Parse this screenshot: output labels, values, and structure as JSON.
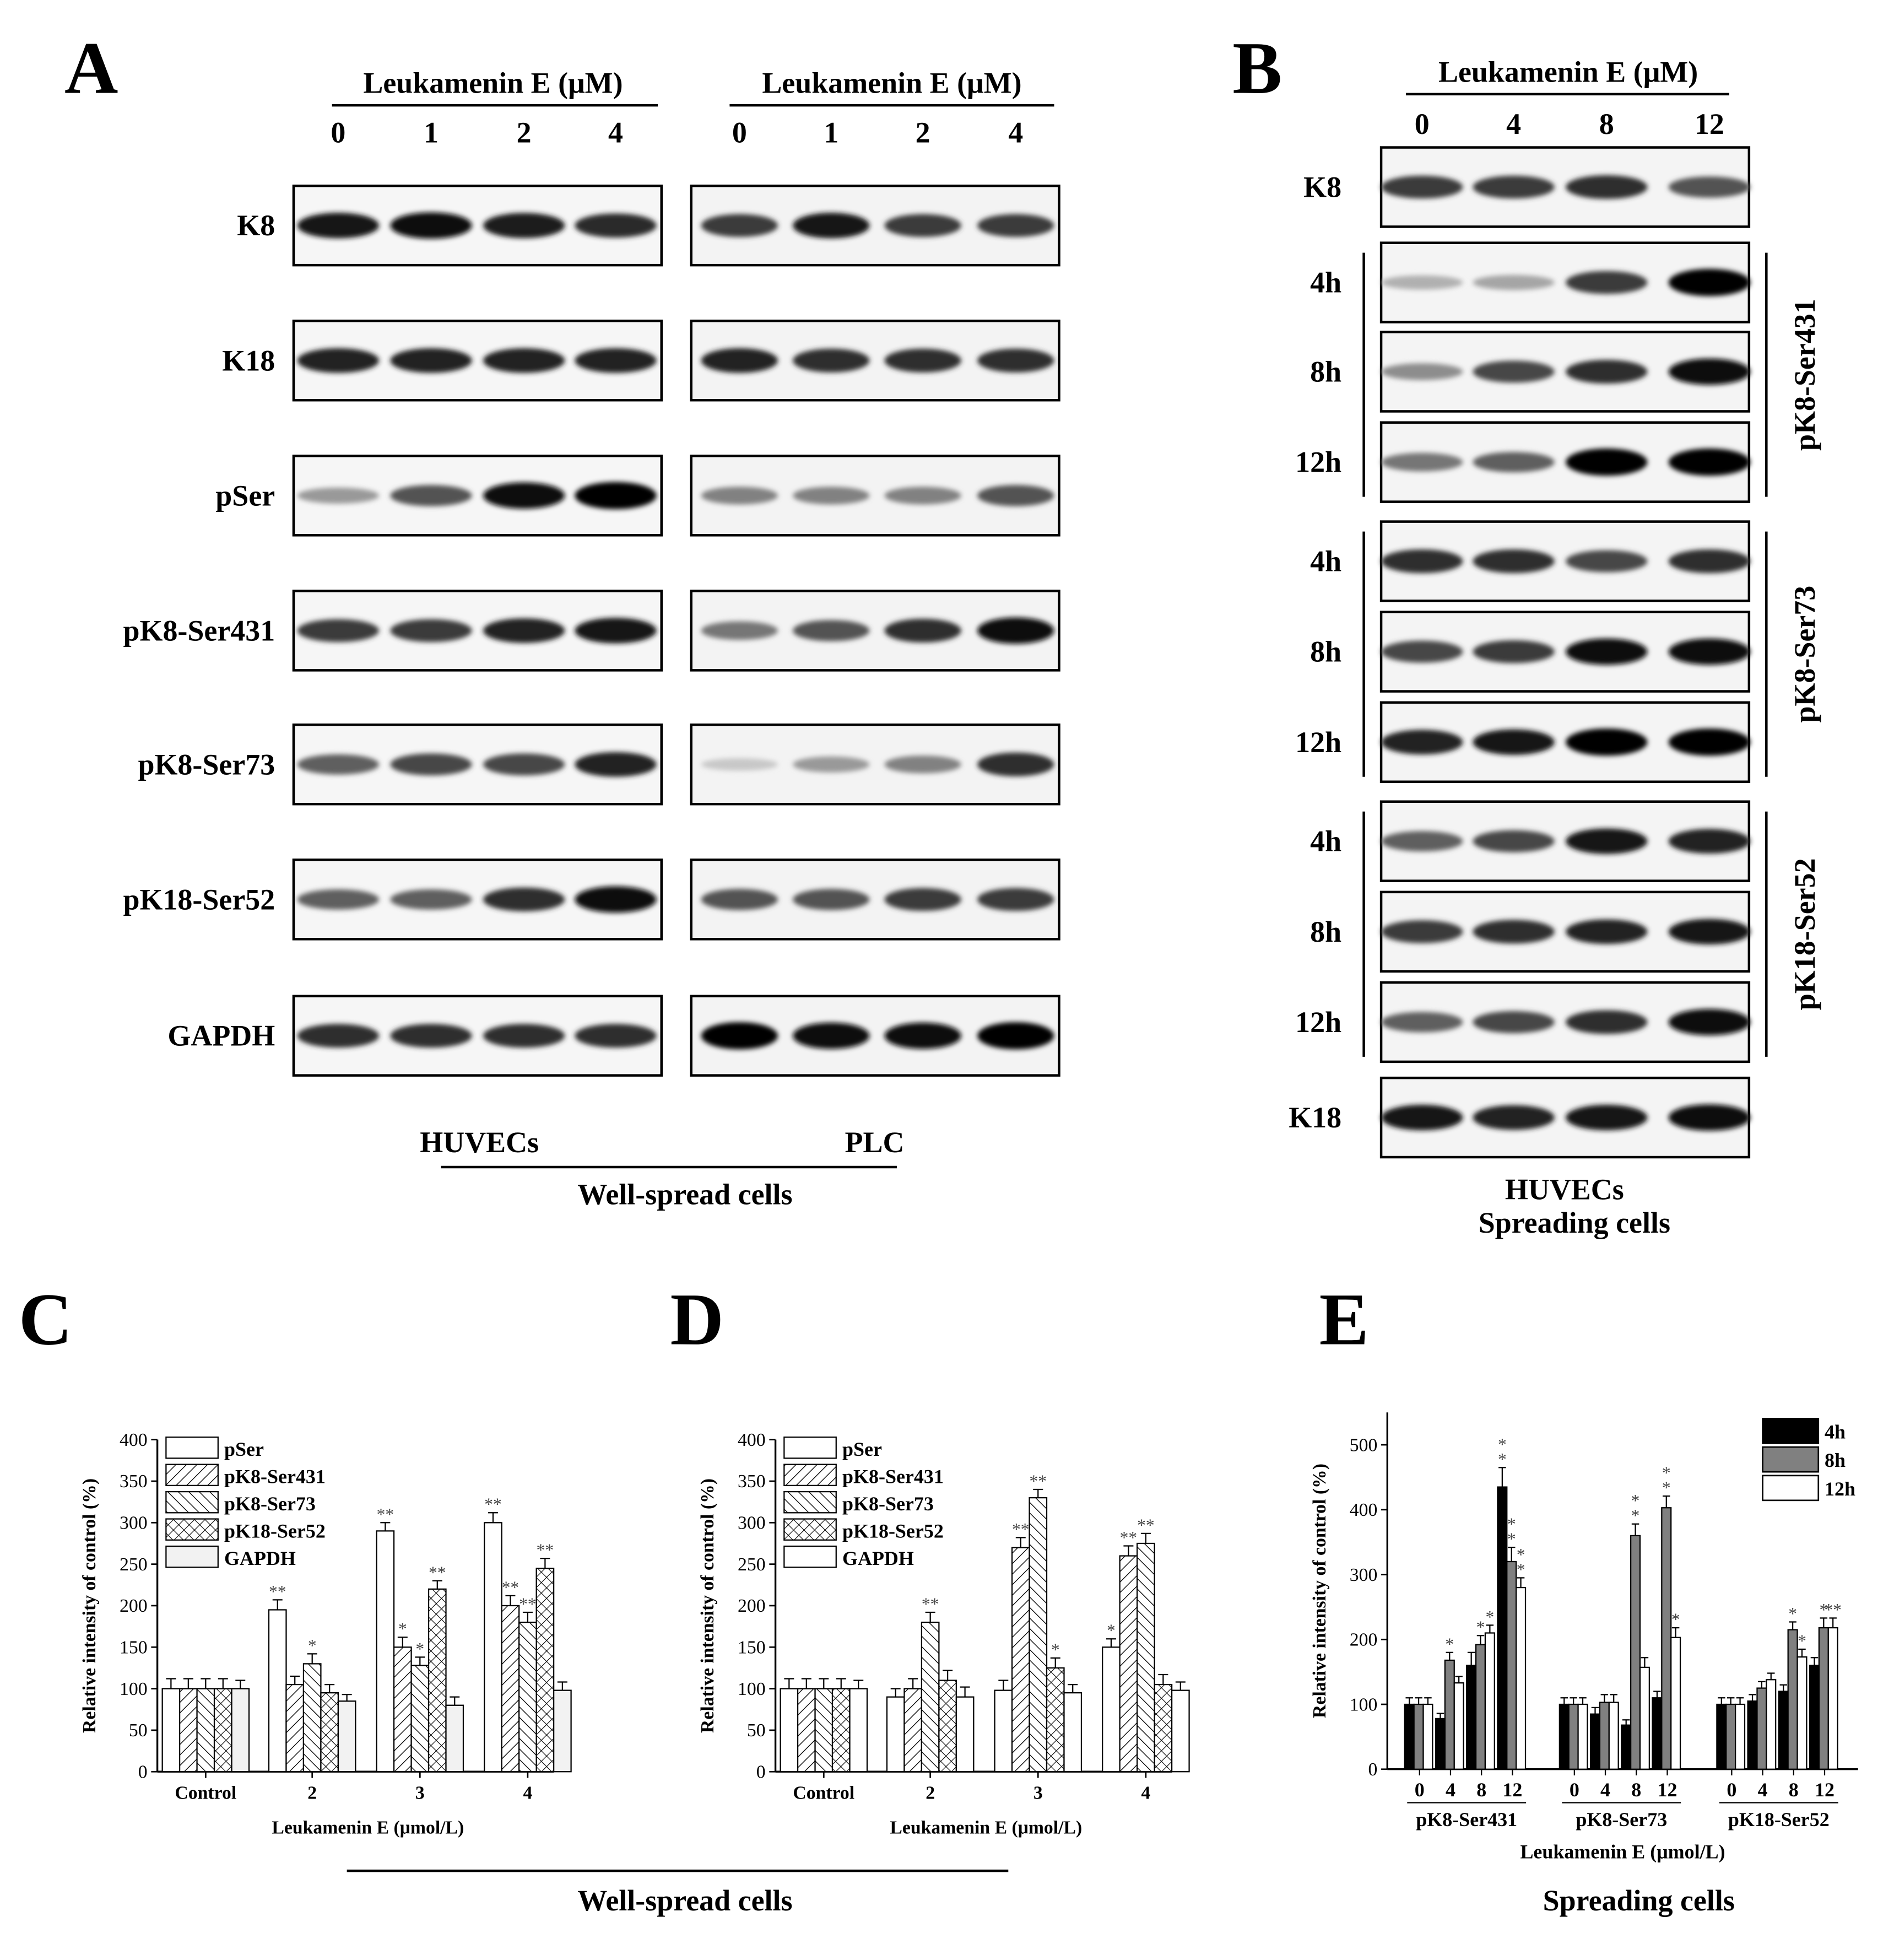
{
  "panelA": {
    "letter": "A",
    "title_left": "Leukamenin E (μM)",
    "title_right": "Leukamenin E (μM)",
    "doses": [
      "0",
      "1",
      "2",
      "4"
    ],
    "rows": [
      "K8",
      "K18",
      "pSer",
      "pK8-Ser431",
      "pK8-Ser73",
      "pK18-Ser52",
      "GAPDH"
    ],
    "cell_huvec": "HUVECs",
    "cell_plc": "PLC",
    "footer": "Well-spread cells",
    "bands_huvec": [
      [
        0.9,
        0.95,
        0.88,
        0.82
      ],
      [
        0.85,
        0.85,
        0.85,
        0.85
      ],
      [
        0.35,
        0.65,
        0.95,
        1.0
      ],
      [
        0.75,
        0.75,
        0.85,
        0.9
      ],
      [
        0.6,
        0.7,
        0.7,
        0.85
      ],
      [
        0.6,
        0.6,
        0.8,
        0.95
      ],
      [
        0.8,
        0.8,
        0.8,
        0.8
      ]
    ],
    "bands_plc": [
      [
        0.75,
        0.9,
        0.75,
        0.75
      ],
      [
        0.85,
        0.8,
        0.8,
        0.8
      ],
      [
        0.45,
        0.45,
        0.45,
        0.65
      ],
      [
        0.5,
        0.65,
        0.8,
        0.95
      ],
      [
        0.15,
        0.35,
        0.45,
        0.8
      ],
      [
        0.65,
        0.65,
        0.75,
        0.75
      ],
      [
        1.0,
        0.95,
        0.95,
        1.0
      ]
    ]
  },
  "panelB": {
    "letter": "B",
    "title": "Leukamenin E (μM)",
    "doses": [
      "0",
      "4",
      "8",
      "12"
    ],
    "top_label": "K8",
    "groups": [
      "pK8-Ser431",
      "pK8-Ser73",
      "pK18-Ser52"
    ],
    "times": [
      "4h",
      "8h",
      "12h"
    ],
    "bottom_label": "K18",
    "footer_line1": "HUVECs",
    "footer_line2": "Spreading cells",
    "band_k8": [
      0.75,
      0.75,
      0.8,
      0.65
    ],
    "band_k18": [
      0.9,
      0.85,
      0.9,
      0.95
    ],
    "band_groups": [
      [
        [
          0.25,
          0.3,
          0.75,
          1.0
        ],
        [
          0.4,
          0.7,
          0.8,
          0.95
        ],
        [
          0.5,
          0.6,
          1.0,
          1.0
        ]
      ],
      [
        [
          0.8,
          0.8,
          0.7,
          0.8
        ],
        [
          0.7,
          0.75,
          0.95,
          0.95
        ],
        [
          0.85,
          0.9,
          1.0,
          1.0
        ]
      ],
      [
        [
          0.6,
          0.7,
          0.9,
          0.85
        ],
        [
          0.75,
          0.8,
          0.85,
          0.9
        ],
        [
          0.6,
          0.7,
          0.8,
          0.95
        ]
      ]
    ]
  },
  "chart_data": [
    {
      "panel": "C",
      "type": "bar",
      "xlabel": "Leukamenin E (μmol/L)",
      "ylabel": "Relative intensity of control (%)",
      "ylim": [
        0,
        400
      ],
      "yticks": [
        0,
        50,
        100,
        150,
        200,
        250,
        300,
        350,
        400
      ],
      "categories": [
        "Control",
        "2",
        "3",
        "4"
      ],
      "legend_position": "top-left",
      "series": [
        {
          "name": "pSer",
          "pattern": "blank",
          "values": [
            100,
            195,
            290,
            300
          ],
          "errors": [
            12,
            12,
            10,
            12
          ],
          "marks": [
            "",
            "**",
            "**",
            "**"
          ]
        },
        {
          "name": "pK8-Ser431",
          "pattern": "diagonal",
          "values": [
            100,
            105,
            150,
            200
          ],
          "errors": [
            12,
            10,
            12,
            12
          ],
          "marks": [
            "",
            "",
            "*",
            "**"
          ]
        },
        {
          "name": "pK8-Ser73",
          "pattern": "reverse-diagonal",
          "values": [
            100,
            130,
            128,
            180
          ],
          "errors": [
            12,
            12,
            10,
            12
          ],
          "marks": [
            "",
            "*",
            "*",
            "**"
          ]
        },
        {
          "name": "pK18-Ser52",
          "pattern": "crosshatch",
          "values": [
            100,
            95,
            220,
            245
          ],
          "errors": [
            12,
            10,
            10,
            12
          ],
          "marks": [
            "",
            "",
            "**",
            "**"
          ]
        },
        {
          "name": "GAPDH",
          "pattern": "light",
          "values": [
            100,
            85,
            80,
            98
          ],
          "errors": [
            10,
            8,
            10,
            10
          ],
          "marks": [
            "",
            "",
            "",
            ""
          ]
        }
      ]
    },
    {
      "panel": "D",
      "type": "bar",
      "xlabel": "Leukamenin E (μmol/L)",
      "ylabel": "Relative intensity of control (%)",
      "ylim": [
        0,
        400
      ],
      "yticks": [
        0,
        50,
        100,
        150,
        200,
        250,
        300,
        350,
        400
      ],
      "categories": [
        "Control",
        "2",
        "3",
        "4"
      ],
      "legend_position": "top-left",
      "series": [
        {
          "name": "pSer",
          "pattern": "blank",
          "values": [
            100,
            90,
            98,
            150
          ],
          "errors": [
            12,
            10,
            12,
            10
          ],
          "marks": [
            "",
            "",
            "",
            "*"
          ]
        },
        {
          "name": "pK8-Ser431",
          "pattern": "diagonal",
          "values": [
            100,
            100,
            270,
            260
          ],
          "errors": [
            12,
            12,
            12,
            12
          ],
          "marks": [
            "",
            "",
            "**",
            "**"
          ]
        },
        {
          "name": "pK8-Ser73",
          "pattern": "reverse-diagonal",
          "values": [
            100,
            180,
            330,
            275
          ],
          "errors": [
            12,
            12,
            10,
            12
          ],
          "marks": [
            "",
            "**",
            "**",
            "**"
          ]
        },
        {
          "name": "pK18-Ser52",
          "pattern": "crosshatch",
          "values": [
            100,
            110,
            125,
            105
          ],
          "errors": [
            12,
            12,
            12,
            12
          ],
          "marks": [
            "",
            "",
            "*",
            ""
          ]
        },
        {
          "name": "GAPDH",
          "pattern": "blank",
          "values": [
            100,
            90,
            95,
            98
          ],
          "errors": [
            10,
            12,
            10,
            10
          ],
          "marks": [
            "",
            "",
            "",
            ""
          ]
        }
      ]
    },
    {
      "panel": "E",
      "type": "bar",
      "xlabel": "Leukamenin E (μmol/L)",
      "ylabel": "Relative intensity of control (%)",
      "ylim": [
        0,
        550
      ],
      "yticks": [
        0,
        100,
        200,
        300,
        400,
        500
      ],
      "groups": [
        "pK8-Ser431",
        "pK8-Ser73",
        "pK18-Ser52"
      ],
      "categories": [
        "0",
        "4",
        "8",
        "12"
      ],
      "legend_position": "top-right",
      "series": [
        {
          "name": "4h",
          "color": "#000000",
          "values": [
            [
              100,
              78,
              160,
              435
            ],
            [
              100,
              85,
              68,
              110
            ],
            [
              100,
              105,
              120,
              160
            ]
          ],
          "errors": [
            [
              10,
              8,
              20,
              30
            ],
            [
              10,
              10,
              8,
              10
            ],
            [
              10,
              10,
              10,
              12
            ]
          ]
        },
        {
          "name": "8h",
          "color": "#808080",
          "values": [
            [
              100,
              168,
              192,
              320
            ],
            [
              100,
              103,
              360,
              403
            ],
            [
              100,
              125,
              215,
              218
            ]
          ],
          "errors": [
            [
              10,
              12,
              14,
              22
            ],
            [
              10,
              12,
              18,
              18
            ],
            [
              10,
              10,
              12,
              15
            ]
          ]
        },
        {
          "name": "12h",
          "color": "#ffffff",
          "values": [
            [
              100,
              133,
              210,
              280
            ],
            [
              100,
              103,
              157,
              203
            ],
            [
              100,
              138,
              173,
              218
            ]
          ],
          "errors": [
            [
              10,
              10,
              12,
              15
            ],
            [
              10,
              12,
              15,
              15
            ],
            [
              10,
              10,
              12,
              15
            ]
          ]
        }
      ],
      "marks": {
        "4h": [
          [
            "",
            "",
            "",
            "* *"
          ],
          [
            "",
            "",
            "",
            ""
          ],
          [
            "",
            "",
            "",
            ""
          ]
        ],
        "8h": [
          [
            "",
            "*",
            "*",
            "* *"
          ],
          [
            "",
            "",
            "* *",
            "* *"
          ],
          [
            "",
            "",
            "*",
            "*"
          ]
        ],
        "12h": [
          [
            "",
            "",
            "*",
            "* *"
          ],
          [
            "",
            "",
            "",
            "*"
          ],
          [
            "",
            "",
            "*",
            "**"
          ]
        ]
      }
    }
  ],
  "panelC": {
    "letter": "C"
  },
  "panelD": {
    "letter": "D"
  },
  "panelE": {
    "letter": "E",
    "footer": "Spreading cells"
  },
  "footer_CD": "Well-spread cells"
}
